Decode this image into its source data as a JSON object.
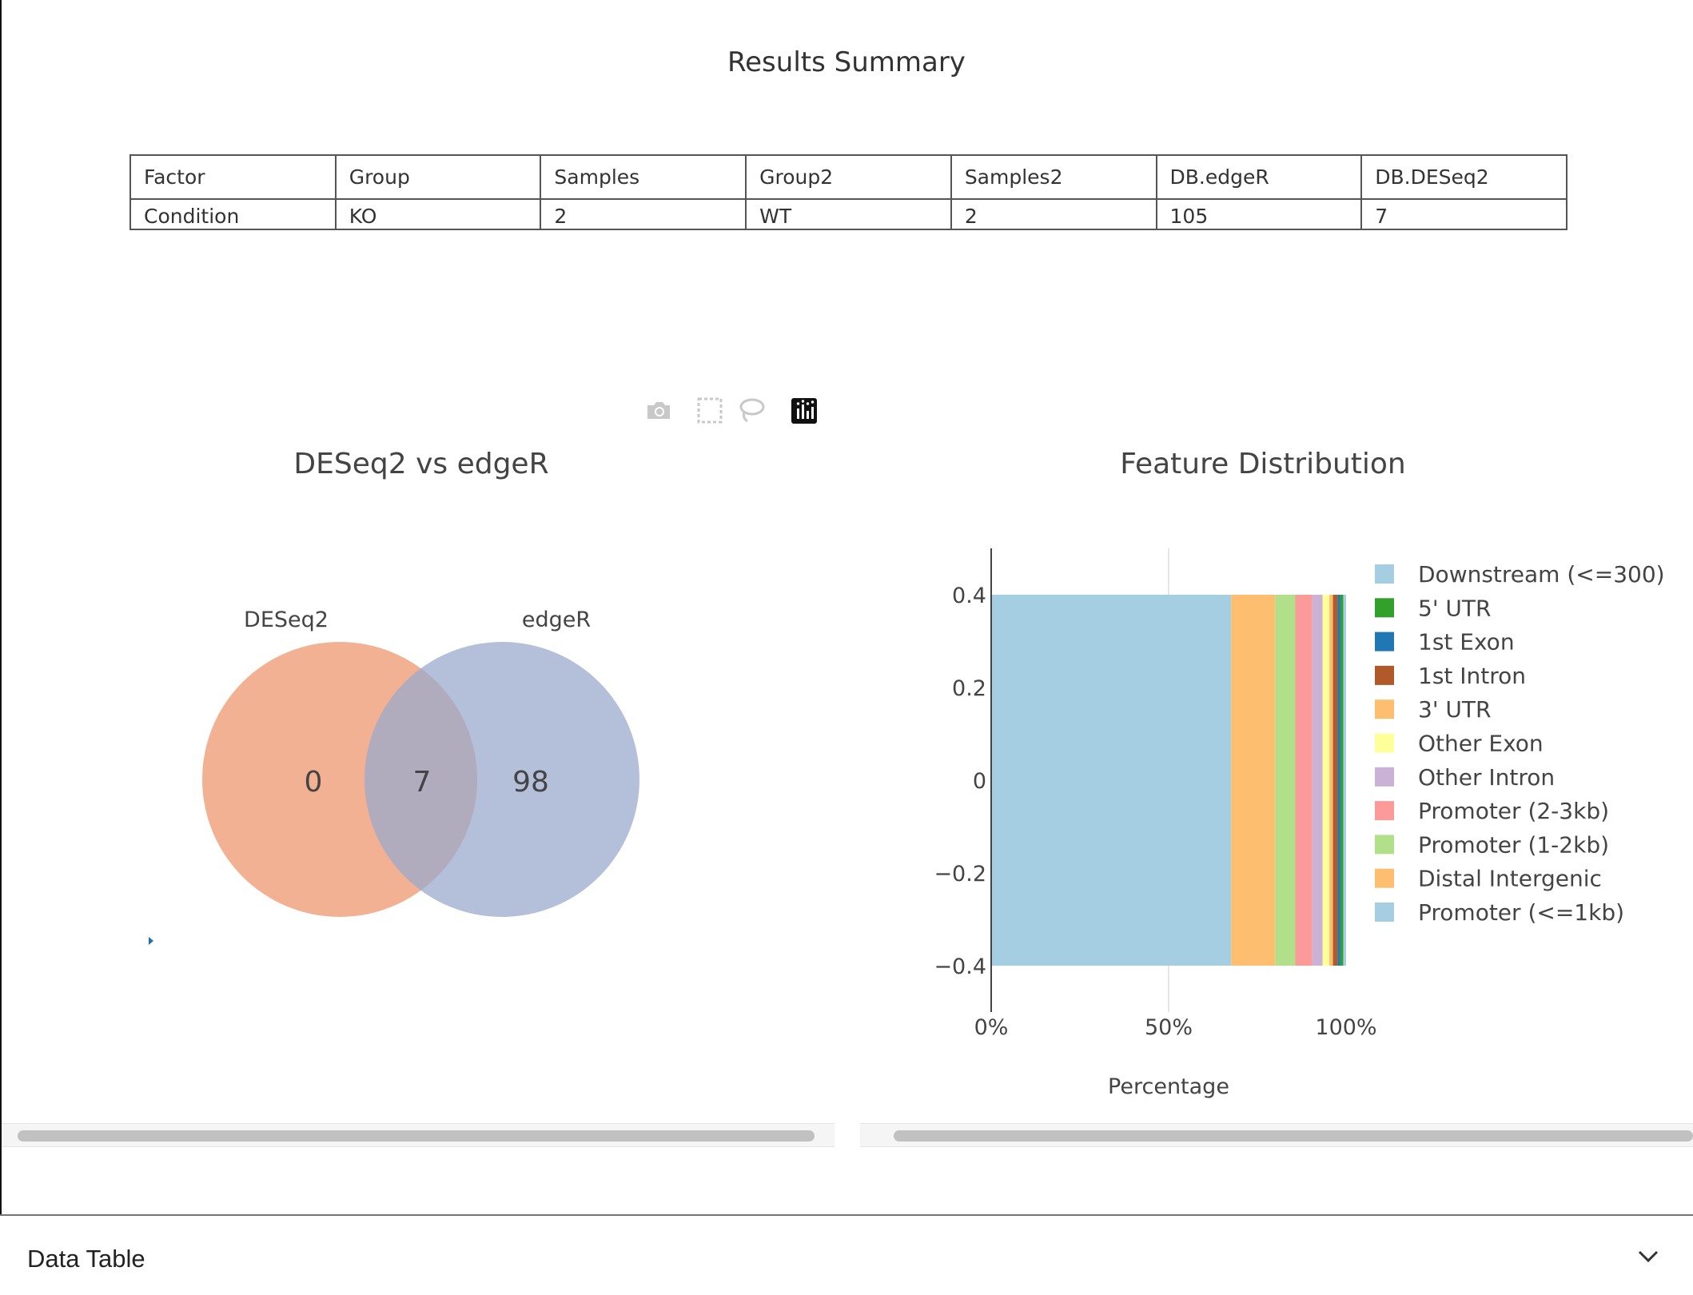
{
  "summary": {
    "title": "Results Summary",
    "columns": [
      "Factor",
      "Group",
      "Samples",
      "Group2",
      "Samples2",
      "DB.edgeR",
      "DB.DESeq2"
    ],
    "row": [
      "Condition",
      "KO",
      "2",
      "WT",
      "2",
      "105",
      "7"
    ]
  },
  "modebar": {
    "buttons": [
      {
        "name": "camera-icon",
        "label": "Download plot as a png"
      },
      {
        "name": "box-select-icon",
        "label": "Box Select"
      },
      {
        "name": "lasso-select-icon",
        "label": "Lasso Select"
      },
      {
        "name": "plotly-logo-icon",
        "label": "Produced with Plotly"
      }
    ]
  },
  "venn": {
    "title": "DESeq2 vs edgeR",
    "sets": [
      {
        "label": "DESeq2",
        "color": "#f0a37f"
      },
      {
        "label": "edgeR",
        "color": "#9ba9cc"
      }
    ],
    "only_deseq2": "0",
    "overlap": "7",
    "only_edger": "98"
  },
  "chart_data": {
    "type": "bar",
    "orientation": "horizontal",
    "barmode": "stack",
    "title": "Feature Distribution",
    "xlabel": "Percentage",
    "ylabel": "",
    "xlim": [
      0,
      100
    ],
    "ylim": [
      -0.5,
      0.5
    ],
    "x_tick_labels": [
      "0%",
      "50%",
      "100%"
    ],
    "y_tick_labels": [
      "0.4",
      "0.2",
      "0",
      "−0.2",
      "−0.4"
    ],
    "grid": true,
    "legend": "right",
    "series": [
      {
        "name": "Promoter (<=1kb)",
        "value": 67.6,
        "color": "#a6cee3"
      },
      {
        "name": "Distal Intergenic",
        "value": 12.4,
        "color": "#fdbf6f"
      },
      {
        "name": "Promoter (1-2kb)",
        "value": 5.7,
        "color": "#b2df8a"
      },
      {
        "name": "Promoter (2-3kb)",
        "value": 4.8,
        "color": "#fb9a99"
      },
      {
        "name": "Other Intron",
        "value": 2.9,
        "color": "#cab2d6"
      },
      {
        "name": "Other Exon",
        "value": 1.9,
        "color": "#ffff99"
      },
      {
        "name": "3' UTR",
        "value": 1.0,
        "color": "#fdbf6f"
      },
      {
        "name": "1st Intron",
        "value": 1.3,
        "color": "#b15928"
      },
      {
        "name": "1st Exon",
        "value": 0.8,
        "color": "#1f78b4"
      },
      {
        "name": "5' UTR",
        "value": 0.8,
        "color": "#33a02c"
      },
      {
        "name": "Downstream (<=300)",
        "value": 0.8,
        "color": "#a6cee3"
      }
    ]
  },
  "data_table": {
    "title": "Data Table"
  }
}
